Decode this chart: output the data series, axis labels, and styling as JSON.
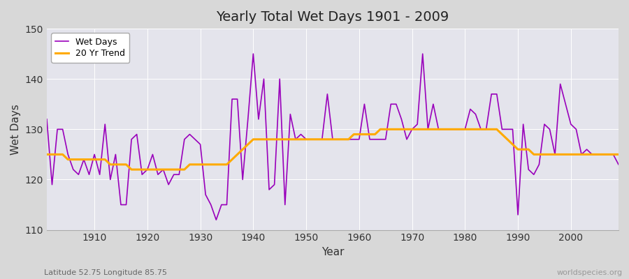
{
  "title": "Yearly Total Wet Days 1901 - 2009",
  "xlabel": "Year",
  "ylabel": "Wet Days",
  "footnote_left": "Latitude 52.75 Longitude 85.75",
  "footnote_right": "worldspecies.org",
  "legend_wet": "Wet Days",
  "legend_trend": "20 Yr Trend",
  "ylim": [
    110,
    150
  ],
  "xlim": [
    1901,
    2009
  ],
  "fig_bg_color": "#d8d8d8",
  "plot_bg_color": "#e4e4ec",
  "wet_color": "#9900bb",
  "trend_color": "#ffaa00",
  "years": [
    1901,
    1902,
    1903,
    1904,
    1905,
    1906,
    1907,
    1908,
    1909,
    1910,
    1911,
    1912,
    1913,
    1914,
    1915,
    1916,
    1917,
    1918,
    1919,
    1920,
    1921,
    1922,
    1923,
    1924,
    1925,
    1926,
    1927,
    1928,
    1929,
    1930,
    1931,
    1932,
    1933,
    1934,
    1935,
    1936,
    1937,
    1938,
    1939,
    1940,
    1941,
    1942,
    1943,
    1944,
    1945,
    1946,
    1947,
    1948,
    1949,
    1950,
    1951,
    1952,
    1953,
    1954,
    1955,
    1956,
    1957,
    1958,
    1959,
    1960,
    1961,
    1962,
    1963,
    1964,
    1965,
    1966,
    1967,
    1968,
    1969,
    1970,
    1971,
    1972,
    1973,
    1974,
    1975,
    1976,
    1977,
    1978,
    1979,
    1980,
    1981,
    1982,
    1983,
    1984,
    1985,
    1986,
    1987,
    1988,
    1989,
    1990,
    1991,
    1992,
    1993,
    1994,
    1995,
    1996,
    1997,
    1998,
    1999,
    2000,
    2001,
    2002,
    2003,
    2004,
    2005,
    2006,
    2007,
    2008,
    2009
  ],
  "wet_days": [
    132,
    119,
    130,
    130,
    125,
    122,
    121,
    124,
    121,
    125,
    121,
    131,
    120,
    125,
    115,
    115,
    128,
    129,
    121,
    122,
    125,
    121,
    122,
    119,
    121,
    121,
    128,
    129,
    128,
    127,
    117,
    115,
    112,
    115,
    115,
    136,
    136,
    120,
    132,
    145,
    132,
    140,
    118,
    119,
    140,
    115,
    133,
    128,
    129,
    128,
    128,
    128,
    128,
    137,
    128,
    128,
    128,
    128,
    128,
    128,
    135,
    128,
    128,
    128,
    128,
    135,
    135,
    132,
    128,
    130,
    131,
    145,
    130,
    135,
    130,
    130,
    130,
    130,
    130,
    130,
    134,
    133,
    130,
    130,
    137,
    137,
    130,
    130,
    130,
    113,
    131,
    122,
    121,
    123,
    131,
    130,
    125,
    139,
    135,
    131,
    130,
    125,
    126,
    125,
    125,
    125,
    125,
    125,
    123
  ],
  "trend_years": [
    1901,
    1902,
    1903,
    1904,
    1905,
    1906,
    1907,
    1908,
    1909,
    1910,
    1911,
    1912,
    1913,
    1914,
    1915,
    1916,
    1917,
    1918,
    1919,
    1920,
    1921,
    1922,
    1923,
    1924,
    1925,
    1926,
    1927,
    1928,
    1929,
    1930,
    1931,
    1932,
    1933,
    1934,
    1935,
    1936,
    1937,
    1938,
    1939,
    1940,
    1941,
    1942,
    1943,
    1944,
    1945,
    1946,
    1947,
    1948,
    1949,
    1950,
    1951,
    1952,
    1953,
    1954,
    1955,
    1956,
    1957,
    1958,
    1959,
    1960,
    1961,
    1962,
    1963,
    1964,
    1965,
    1966,
    1967,
    1968,
    1969,
    1970,
    1971,
    1972,
    1973,
    1974,
    1975,
    1976,
    1977,
    1978,
    1979,
    1980,
    1981,
    1982,
    1983,
    1984,
    1985,
    1986,
    1987,
    1988,
    1989,
    1990,
    1991,
    1992,
    1993,
    1994,
    1995,
    1996,
    1997,
    1998,
    1999,
    2000,
    2001,
    2002,
    2003,
    2004,
    2005,
    2006,
    2007,
    2008,
    2009
  ],
  "trend_vals": [
    125,
    125,
    125,
    125,
    124,
    124,
    124,
    124,
    124,
    124,
    124,
    124,
    123,
    123,
    123,
    123,
    122,
    122,
    122,
    122,
    122,
    122,
    122,
    122,
    122,
    122,
    122,
    123,
    123,
    123,
    123,
    123,
    123,
    123,
    123,
    124,
    125,
    126,
    127,
    128,
    128,
    128,
    128,
    128,
    128,
    128,
    128,
    128,
    128,
    128,
    128,
    128,
    128,
    128,
    128,
    128,
    128,
    128,
    129,
    129,
    129,
    129,
    129,
    130,
    130,
    130,
    130,
    130,
    130,
    130,
    130,
    130,
    130,
    130,
    130,
    130,
    130,
    130,
    130,
    130,
    130,
    130,
    130,
    130,
    130,
    130,
    129,
    128,
    127,
    126,
    126,
    126,
    125,
    125,
    125,
    125,
    125,
    125,
    125,
    125,
    125,
    125,
    125,
    125,
    125,
    125,
    125,
    125,
    125
  ]
}
